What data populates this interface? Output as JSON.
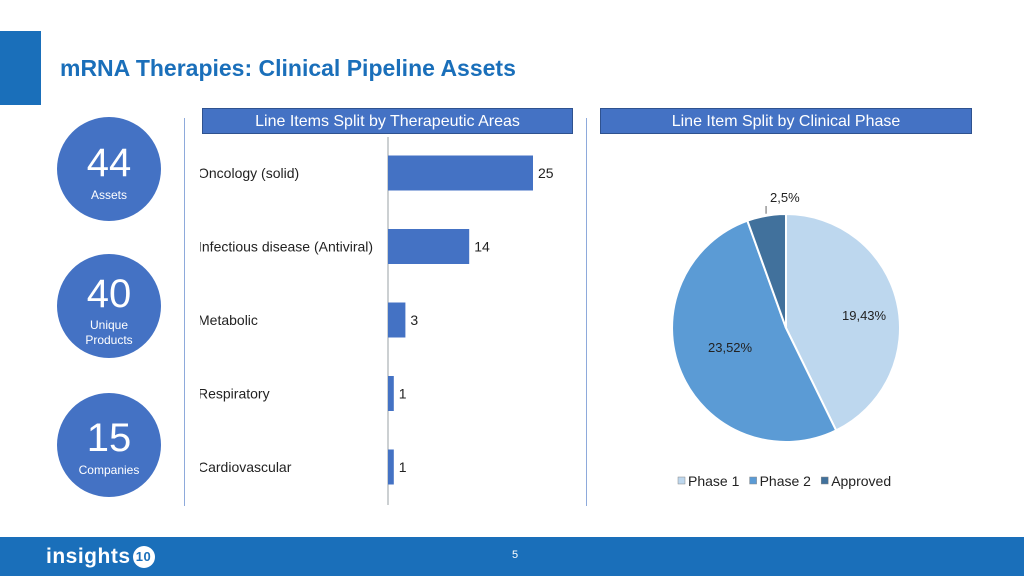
{
  "title": "mRNA Therapies: Clinical Pipeline Assets",
  "stats": [
    {
      "number": "44",
      "label": "Assets"
    },
    {
      "number": "40",
      "label": "Unique Products"
    },
    {
      "number": "15",
      "label": "Companies"
    }
  ],
  "colors": {
    "accent": "#1a6fba",
    "header": "#4472c4",
    "phase1": "#bdd7ee",
    "phase2": "#5b9bd5",
    "approved": "#41719c"
  },
  "chart_data": [
    {
      "type": "bar",
      "orientation": "horizontal",
      "title": "Line Items Split by Therapeutic Areas",
      "categories": [
        "Oncology (solid)",
        "Infectious disease (Antiviral)",
        "Metabolic",
        "Respiratory",
        "Cardiovascular"
      ],
      "values": [
        25,
        14,
        3,
        1,
        1
      ],
      "data_labels": [
        "25",
        "14",
        "3",
        "1",
        "1"
      ],
      "grid": false
    },
    {
      "type": "pie",
      "title": "Line Item Split by Clinical Phase",
      "series": [
        {
          "name": "Phase 1",
          "value": 19.43,
          "label": "19,43%"
        },
        {
          "name": "Phase 2",
          "value": 23.52,
          "label": "23,52%"
        },
        {
          "name": "Approved",
          "value": 2.5,
          "label": "2,5%"
        }
      ],
      "legend": "bottom"
    }
  ],
  "footer": {
    "logo": "insights",
    "logo_badge": "10",
    "page_number": "5"
  }
}
